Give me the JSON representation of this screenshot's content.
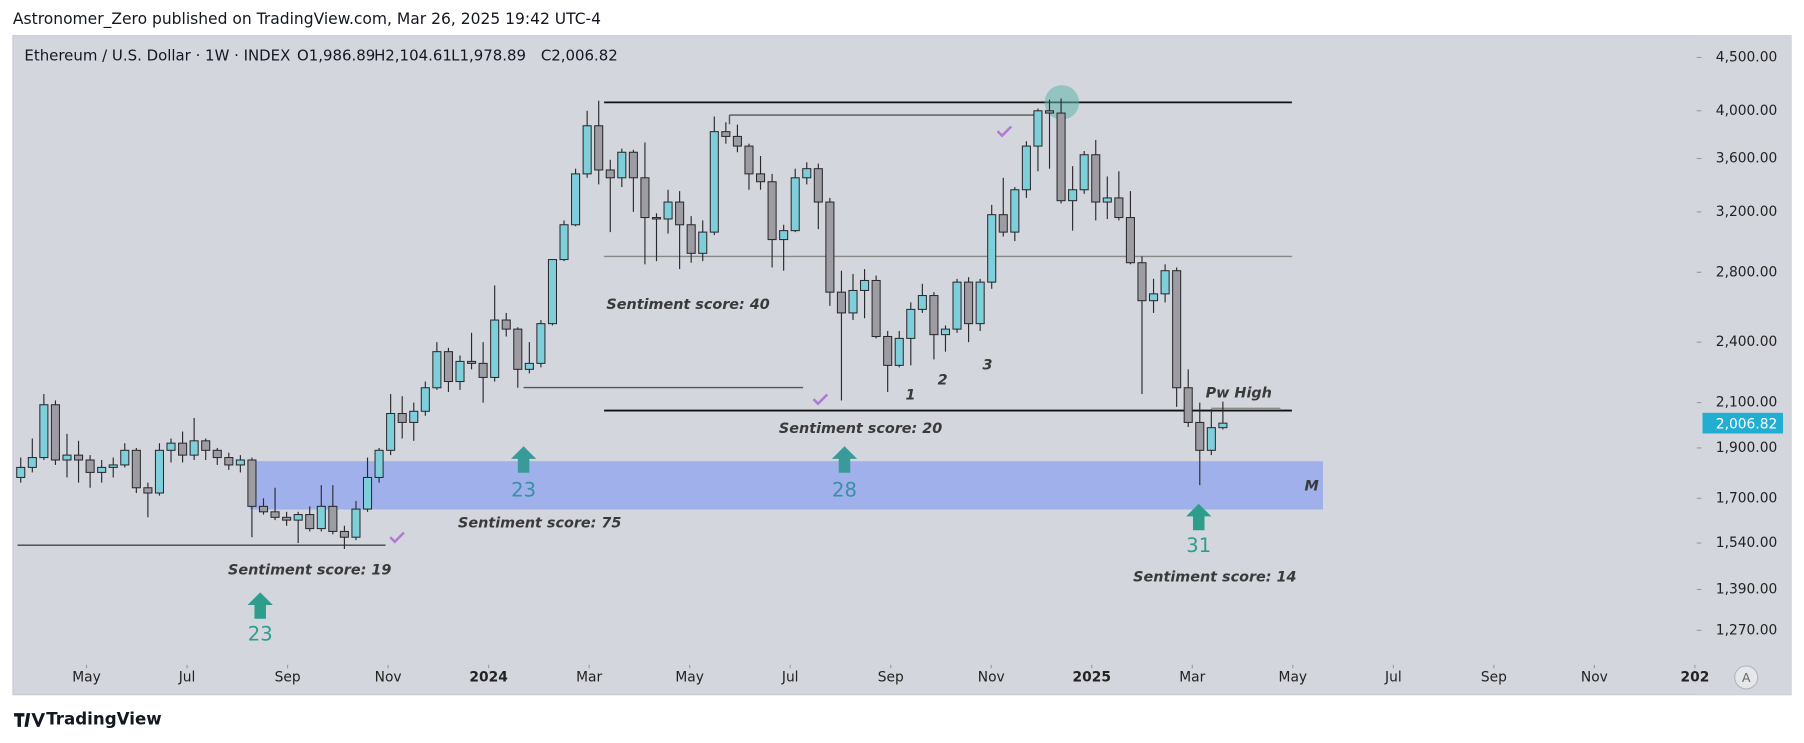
{
  "header": {
    "published": "Astronomer_Zero published on TradingView.com, Mar 26, 2025 19:42 UTC-4",
    "brand": "TradingView",
    "scale_button": "A"
  },
  "chart_data": {
    "type": "candlestick",
    "title": "Ethereum / U.S. Dollar · 1W · INDEX",
    "ohlc_labels": [
      "O1,986.89",
      "H2,104.61",
      "L1,978.89",
      "C2,006.82"
    ],
    "last_price_label": "2,006.82",
    "log_scale": true,
    "ylim": [
      1186,
      4710
    ],
    "yticks": [
      {
        "value": 4500,
        "label": "4,500.00"
      },
      {
        "value": 4000,
        "label": "4,000.00"
      },
      {
        "value": 3600,
        "label": "3,600.00"
      },
      {
        "value": 3200,
        "label": "3,200.00"
      },
      {
        "value": 2800,
        "label": "2,800.00"
      },
      {
        "value": 2400,
        "label": "2,400.00"
      },
      {
        "value": 2100,
        "label": "2,100.00"
      },
      {
        "value": 1900,
        "label": "1,900.00"
      },
      {
        "value": 1700,
        "label": "1,700.00"
      },
      {
        "value": 1540,
        "label": "1,540.00"
      },
      {
        "value": 1390,
        "label": "1,390.00"
      },
      {
        "value": 1270,
        "label": "1,270.00"
      }
    ],
    "xticks": [
      {
        "value": "2023-05",
        "label": "May"
      },
      {
        "value": "2023-07",
        "label": "Jul"
      },
      {
        "value": "2023-09",
        "label": "Sep"
      },
      {
        "value": "2023-11",
        "label": "Nov"
      },
      {
        "value": "2024-01",
        "label": "2024"
      },
      {
        "value": "2024-03",
        "label": "Mar"
      },
      {
        "value": "2024-05",
        "label": "May"
      },
      {
        "value": "2024-07",
        "label": "Jul"
      },
      {
        "value": "2024-09",
        "label": "Sep"
      },
      {
        "value": "2024-11",
        "label": "Nov"
      },
      {
        "value": "2025-01",
        "label": "2025"
      },
      {
        "value": "2025-03",
        "label": "Mar"
      },
      {
        "value": "2025-05",
        "label": "May"
      },
      {
        "value": "2025-07",
        "label": "Jul"
      },
      {
        "value": "2025-09",
        "label": "Sep"
      },
      {
        "value": "2025-11",
        "label": "Nov"
      },
      {
        "value": "2026-01",
        "label": "202"
      }
    ],
    "up_color": "#7fcfdb",
    "down_color": "#9c9ca2",
    "open": [
      1780,
      1820,
      1860,
      2090,
      1850,
      1870,
      1850,
      1800,
      1820,
      1830,
      1890,
      1740,
      1720,
      1890,
      1920,
      1870,
      1930,
      1890,
      1860,
      1830,
      1850,
      1670,
      1650,
      1630,
      1620,
      1640,
      1590,
      1670,
      1580,
      1560,
      1660,
      1780,
      1890,
      2050,
      2010,
      2060,
      2170,
      2350,
      2200,
      2300,
      2290,
      2220,
      2520,
      2470,
      2260,
      2290,
      2500,
      2880,
      3110,
      3480,
      3870,
      3510,
      3450,
      3650,
      3450,
      3160,
      3150,
      3270,
      3110,
      2920,
      3060,
      3820,
      3780,
      3700,
      3480,
      3420,
      3010,
      3070,
      3450,
      3520,
      3270,
      2680,
      2560,
      2690,
      2750,
      2430,
      2280,
      2420,
      2580,
      2660,
      2440,
      2470,
      2740,
      2500,
      2740,
      3180,
      3060,
      3360,
      3700,
      4000,
      3980,
      3280,
      3360,
      3630,
      3270,
      3300,
      3160,
      2860,
      2630,
      2670,
      2810,
      2170,
      2010,
      1890,
      1986.89
    ],
    "high": [
      1860,
      1940,
      2140,
      2110,
      1960,
      1930,
      1870,
      1850,
      1860,
      1920,
      1900,
      1760,
      1920,
      1940,
      1970,
      2030,
      1940,
      1900,
      1880,
      1870,
      1860,
      1700,
      1740,
      1650,
      1650,
      1670,
      1750,
      1750,
      1600,
      1690,
      1860,
      1900,
      2140,
      2130,
      2100,
      2200,
      2400,
      2370,
      2330,
      2450,
      2400,
      2720,
      2560,
      2480,
      2400,
      2520,
      2880,
      3140,
      3520,
      4000,
      4090,
      3590,
      3680,
      3670,
      3730,
      3190,
      3360,
      3350,
      3170,
      3140,
      3950,
      3900,
      3880,
      3720,
      3620,
      3480,
      3110,
      3520,
      3570,
      3560,
      3300,
      2810,
      2790,
      2820,
      2780,
      2460,
      2460,
      2620,
      2730,
      2680,
      2490,
      2760,
      2770,
      2760,
      3250,
      3450,
      3380,
      3740,
      4020,
      4100,
      4110,
      3540,
      3660,
      3750,
      3460,
      3500,
      3350,
      2900,
      2760,
      2850,
      2830,
      2260,
      2100,
      2070,
      2104.61
    ],
    "low": [
      1760,
      1800,
      1850,
      1830,
      1780,
      1760,
      1740,
      1760,
      1780,
      1820,
      1720,
      1630,
      1710,
      1840,
      1840,
      1850,
      1850,
      1830,
      1810,
      1800,
      1560,
      1640,
      1620,
      1600,
      1540,
      1580,
      1580,
      1570,
      1520,
      1550,
      1650,
      1760,
      1870,
      1940,
      1930,
      2040,
      2160,
      2150,
      2160,
      2260,
      2100,
      2200,
      2430,
      2170,
      2240,
      2270,
      2490,
      2870,
      3100,
      3450,
      3400,
      3060,
      3380,
      3200,
      2850,
      2870,
      3050,
      2820,
      2860,
      2870,
      3040,
      3720,
      3650,
      3360,
      3360,
      2830,
      2810,
      3060,
      3400,
      3080,
      2600,
      2110,
      2520,
      2530,
      2420,
      2150,
      2270,
      2280,
      2560,
      2310,
      2350,
      2450,
      2400,
      2460,
      2700,
      3030,
      3000,
      3300,
      3500,
      3520,
      3260,
      3070,
      3330,
      3140,
      3150,
      3140,
      2850,
      2140,
      2560,
      2620,
      2080,
      1990,
      1750,
      1870,
      1978.89
    ],
    "close": [
      1820,
      1860,
      2090,
      1850,
      1870,
      1850,
      1800,
      1820,
      1830,
      1890,
      1740,
      1720,
      1890,
      1920,
      1870,
      1930,
      1890,
      1860,
      1830,
      1850,
      1670,
      1650,
      1630,
      1620,
      1640,
      1590,
      1670,
      1580,
      1560,
      1660,
      1780,
      1890,
      2050,
      2010,
      2060,
      2170,
      2350,
      2200,
      2300,
      2290,
      2220,
      2520,
      2470,
      2260,
      2290,
      2500,
      2880,
      3110,
      3480,
      3870,
      3510,
      3450,
      3650,
      3450,
      3160,
      3150,
      3270,
      3110,
      2920,
      3060,
      3820,
      3780,
      3700,
      3480,
      3420,
      3010,
      3070,
      3450,
      3520,
      3270,
      2680,
      2560,
      2690,
      2750,
      2430,
      2280,
      2420,
      2580,
      2660,
      2440,
      2470,
      2740,
      2500,
      2740,
      3180,
      3060,
      3360,
      3700,
      4000,
      3980,
      3280,
      3360,
      3630,
      3270,
      3300,
      3160,
      2860,
      2630,
      2670,
      2810,
      2170,
      2010,
      1890,
      1986.89,
      2006.82
    ]
  },
  "annotations": [
    "Sentiment score: 40",
    "Sentiment score: 20",
    "Sentiment score: 75",
    "Sentiment score: 19",
    "Sentiment score: 14",
    "Pw High",
    "M",
    "1",
    "2",
    "3"
  ],
  "markers": [
    "23",
    "28",
    "23",
    "31"
  ]
}
